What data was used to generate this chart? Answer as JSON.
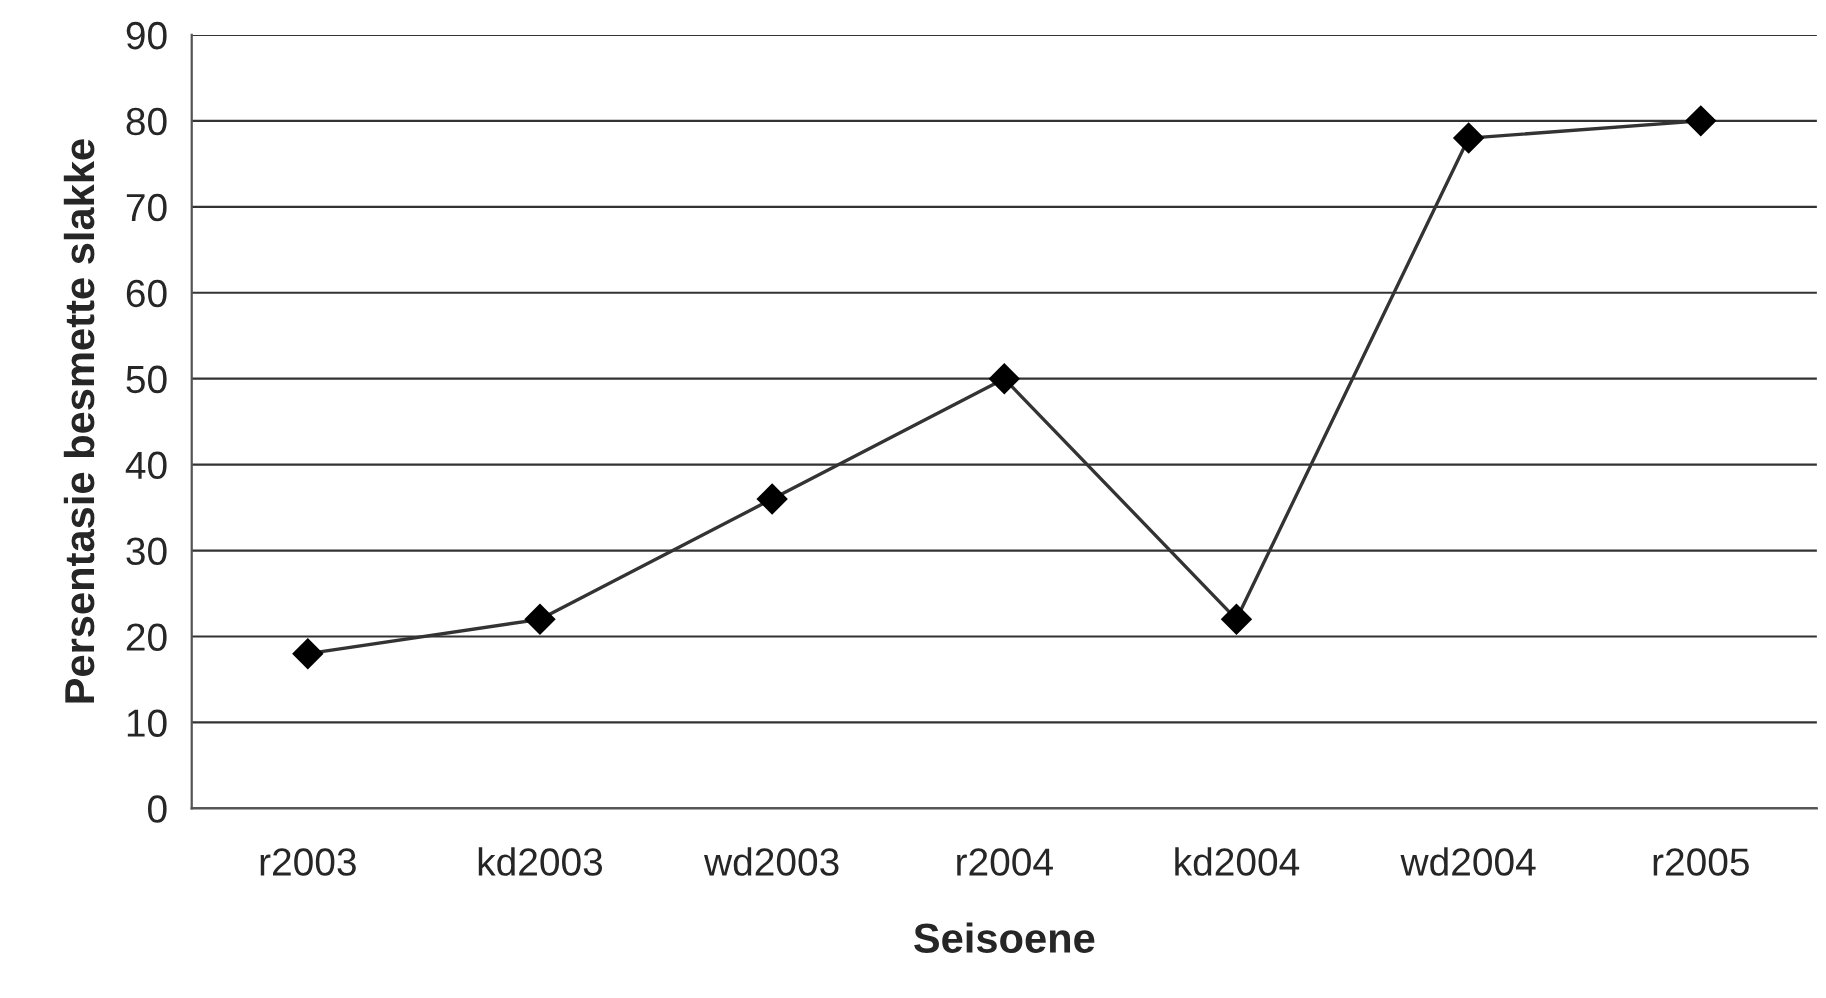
{
  "chart_data": {
    "type": "line",
    "xlabel": "Seisoene",
    "ylabel": "Persentasie besmette slakke",
    "categories": [
      "r2003",
      "kd2003",
      "wd2003",
      "r2004",
      "kd2004",
      "wd2004",
      "r2005"
    ],
    "series": [
      {
        "color": "#333333",
        "values": [
          18,
          22,
          36,
          50,
          22,
          78,
          80
        ]
      }
    ],
    "ylim": [
      0,
      90
    ],
    "yticks": [
      0,
      10,
      20,
      30,
      40,
      50,
      60,
      70,
      80,
      90
    ],
    "grid": "y",
    "marker": "diamond",
    "line_style": "solid",
    "legend": false
  }
}
